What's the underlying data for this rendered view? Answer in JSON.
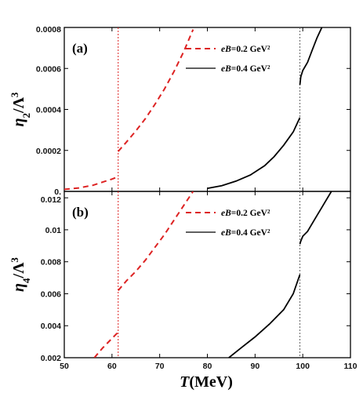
{
  "colors": {
    "series_02": "#dd2222",
    "series_04": "#000000",
    "vline_02": "#dd2222",
    "vline_04": "#666666"
  },
  "xlabel": {
    "italic": "T",
    "rest": "(MeV)"
  },
  "chart_data": [
    {
      "type": "line",
      "panel_label": "(a)",
      "ylabel": {
        "symbol": "η",
        "sub": "2",
        "den": "Λ",
        "sup": "3"
      },
      "xlim": [
        50,
        110
      ],
      "ylim": [
        0,
        0.0008
      ],
      "xticks": [
        50,
        60,
        70,
        80,
        90,
        100,
        110
      ],
      "xtick_labels": [
        "",
        "",
        "",
        "",
        "",
        "",
        ""
      ],
      "yticks": [
        0,
        0.0002,
        0.0004,
        0.0006,
        0.0008
      ],
      "ytick_labels": [
        "0.",
        "0.0002",
        "0.0004",
        "0.0006",
        "0.0008"
      ],
      "vlines": [
        61.3,
        99.4
      ],
      "legend_position": "top-right",
      "series": [
        {
          "name_italic": "eB",
          "name_rest": "=0.2 GeV²",
          "style": "dashed",
          "segments": [
            {
              "x": [
                50,
                53,
                56,
                58,
                60,
                61.3
              ],
              "y": [
                1e-05,
                1.7e-05,
                3e-05,
                4.5e-05,
                6e-05,
                7.2e-05
              ]
            },
            {
              "x": [
                61.3,
                63,
                65,
                67,
                69,
                71,
                73,
                75,
                77
              ],
              "y": [
                0.000195,
                0.00024,
                0.000295,
                0.000355,
                0.000425,
                0.0005,
                0.000585,
                0.00068,
                0.00079
              ]
            }
          ]
        },
        {
          "name_italic": "eB",
          "name_rest": "=0.4 GeV²",
          "style": "solid",
          "segments": [
            {
              "x": [
                80,
                83,
                86,
                89,
                92,
                94,
                96,
                98,
                99.4
              ],
              "y": [
                1.5e-05,
                2.8e-05,
                5e-05,
                8e-05,
                0.000125,
                0.00017,
                0.000225,
                0.00029,
                0.00036
              ]
            },
            {
              "x": [
                99.4,
                99.6,
                100,
                101,
                102,
                103,
                104
              ],
              "y": [
                0.00052,
                0.00056,
                0.00059,
                0.00063,
                0.00069,
                0.00075,
                0.0008
              ]
            }
          ]
        }
      ]
    },
    {
      "type": "line",
      "panel_label": "(b)",
      "ylabel": {
        "symbol": "η",
        "sub": "4",
        "den": "Λ",
        "sup": "3"
      },
      "xlim": [
        50,
        110
      ],
      "ylim": [
        0.002,
        0.0124
      ],
      "xticks": [
        50,
        60,
        70,
        80,
        90,
        100,
        110
      ],
      "xtick_labels": [
        "50",
        "60",
        "70",
        "80",
        "90",
        "100",
        "110"
      ],
      "yticks": [
        0.002,
        0.004,
        0.006,
        0.008,
        0.01,
        0.012
      ],
      "ytick_labels": [
        "0.002",
        "0.004",
        "0.006",
        "0.008",
        "0.01",
        "0.012"
      ],
      "vlines": [
        61.3,
        99.4
      ],
      "legend_position": "top-right",
      "series": [
        {
          "name_italic": "eB",
          "name_rest": "=0.2 GeV²",
          "style": "dashed",
          "segments": [
            {
              "x": [
                56.3,
                58,
                60,
                61.3
              ],
              "y": [
                0.002,
                0.0026,
                0.0032,
                0.0036
              ]
            },
            {
              "x": [
                61.3,
                63,
                65,
                67,
                69,
                71,
                73,
                75,
                77
              ],
              "y": [
                0.0062,
                0.0068,
                0.0074,
                0.0081,
                0.0089,
                0.0097,
                0.0106,
                0.0115,
                0.0124
              ]
            }
          ]
        },
        {
          "name_italic": "eB",
          "name_rest": "=0.4 GeV²",
          "style": "solid",
          "segments": [
            {
              "x": [
                84.5,
                87,
                90,
                93,
                96,
                98,
                99.4
              ],
              "y": [
                0.002,
                0.0026,
                0.0033,
                0.0041,
                0.005,
                0.006,
                0.0072
              ]
            },
            {
              "x": [
                99.4,
                99.6,
                100,
                101,
                102,
                103,
                104,
                105,
                106
              ],
              "y": [
                0.0091,
                0.0093,
                0.0096,
                0.0099,
                0.0104,
                0.0109,
                0.0114,
                0.0119,
                0.0124
              ]
            }
          ]
        }
      ]
    }
  ]
}
